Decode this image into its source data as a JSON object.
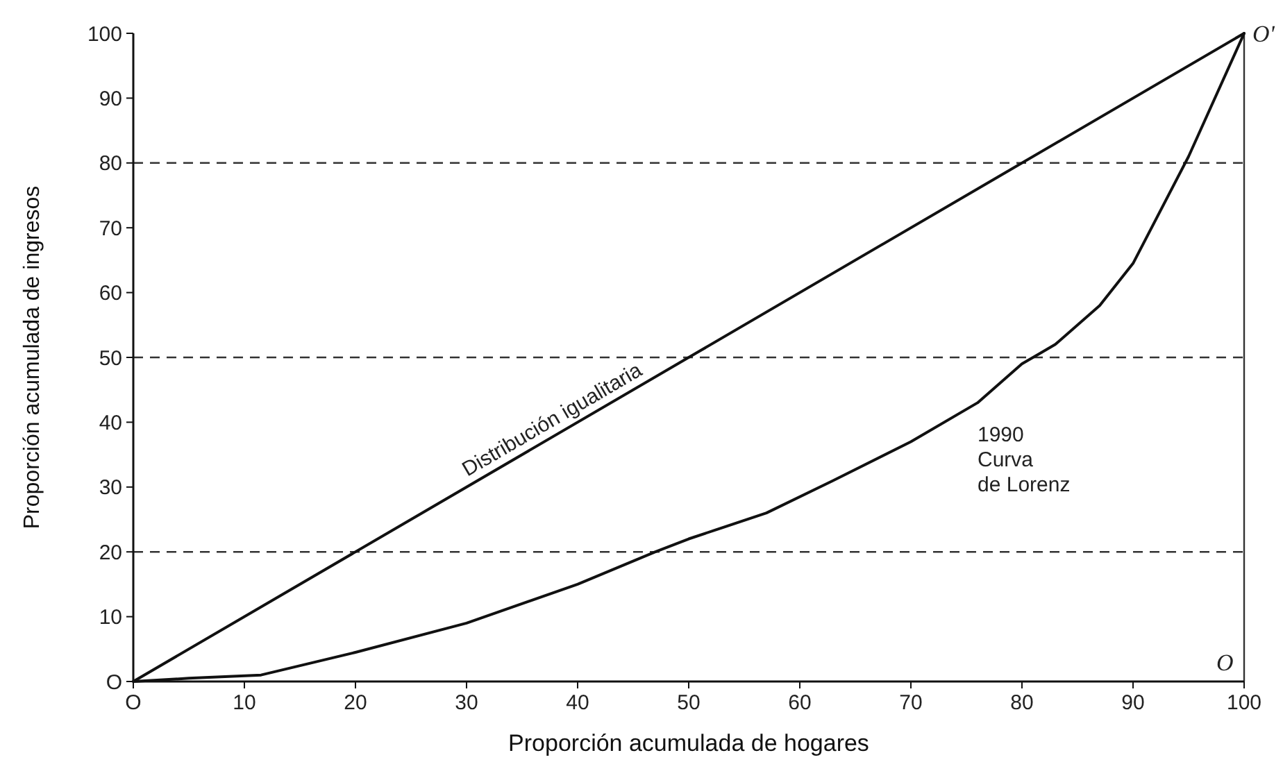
{
  "chart_data": {
    "type": "line",
    "xlabel": "Proporción acumulada de hogares",
    "ylabel": "Proporción acumulada de ingresos",
    "series": [
      {
        "name": "Distribución igualitaria",
        "color": "#111111",
        "x": [
          0,
          100
        ],
        "values": [
          0,
          100
        ]
      },
      {
        "name": "1990\nCurva\nde Lorenz",
        "color": "#111111",
        "x": [
          0,
          5,
          11.5,
          20,
          30,
          40,
          47,
          50,
          57,
          63,
          70,
          76,
          80,
          83,
          87,
          90,
          95,
          100
        ],
        "values": [
          0,
          0.5,
          1,
          4.5,
          9,
          15,
          20,
          22,
          26,
          31,
          37,
          43,
          49,
          52,
          58,
          64.5,
          81,
          100
        ]
      }
    ],
    "xlim": [
      0,
      100
    ],
    "ylim": [
      0,
      100
    ],
    "xticks": [
      {
        "value": 0,
        "label": "O"
      },
      10,
      20,
      30,
      40,
      50,
      60,
      70,
      80,
      90,
      100
    ],
    "yticks": [
      {
        "value": 0,
        "label": "O"
      },
      10,
      20,
      30,
      40,
      50,
      60,
      70,
      80,
      90,
      100
    ],
    "ref_lines": [
      {
        "axis": "y",
        "value": 20,
        "line_style": "dashed"
      },
      {
        "axis": "y",
        "value": 50,
        "line_style": "dashed"
      },
      {
        "axis": "y",
        "value": 80,
        "line_style": "dashed"
      },
      {
        "axis": "x",
        "value": 100,
        "line_style": "solid"
      }
    ],
    "annotations": [
      {
        "text": "O'",
        "x": 100,
        "y": 100
      },
      {
        "text": "O",
        "x": 100,
        "y": 0
      }
    ],
    "grid": false,
    "marker": "none",
    "line_style": "solid"
  }
}
